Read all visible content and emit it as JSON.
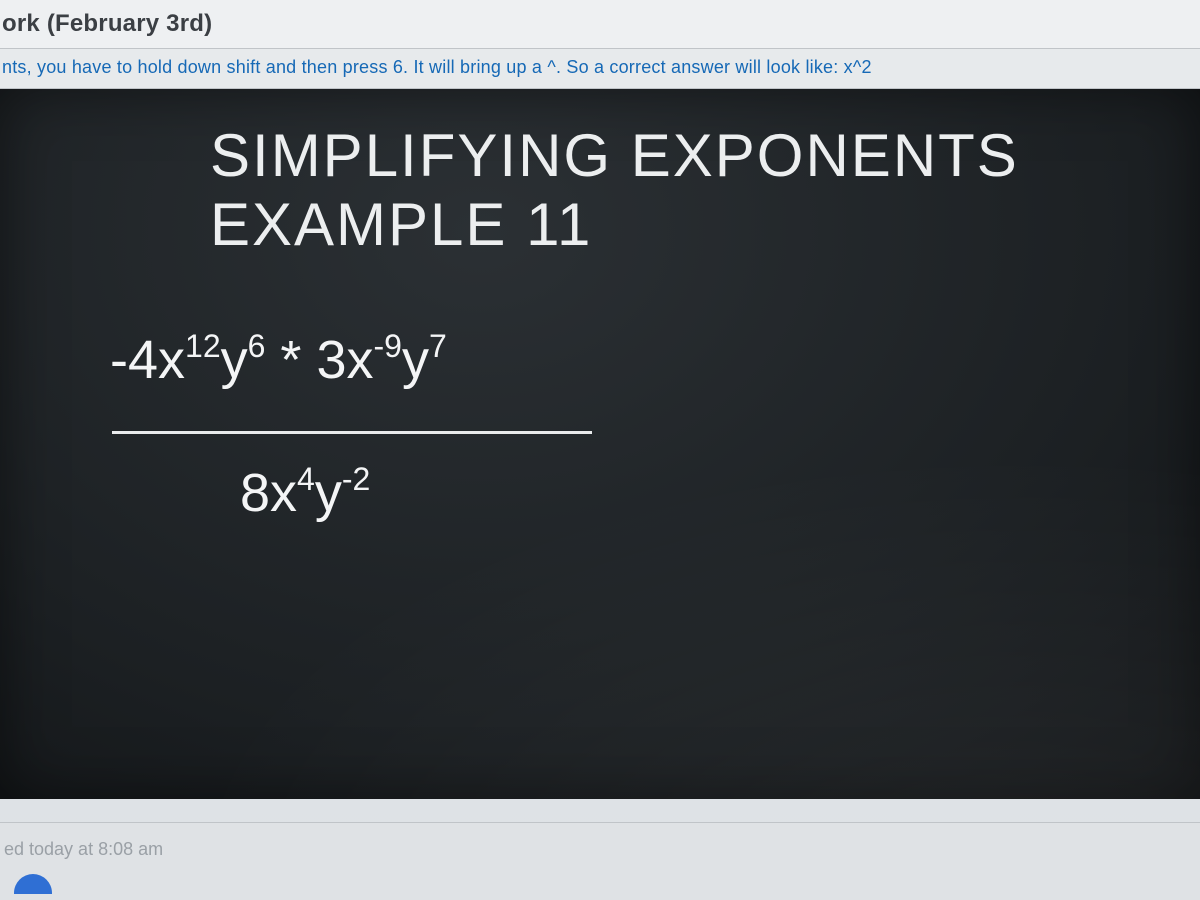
{
  "header": {
    "assignment_title_fragment": "ork (February 3rd)"
  },
  "instruction": {
    "text_fragment": "nts, you have to hold down shift and then press 6. It will bring up a ^. So a correct answer will look like: x^2"
  },
  "slide": {
    "title_text": "Simplifying Exponents Example ",
    "title_number": "11",
    "background_color": "#1c2023",
    "text_color": "#f3f4f5",
    "expression": {
      "numerator_plain": "-4x^12 y^6 * 3x^-9 y^7",
      "denominator_plain": "8x^4 y^-2",
      "num_coef1": "-4x",
      "num_exp1": "12",
      "num_var2": "y",
      "num_exp2": "6",
      "star": " * ",
      "num_coef3": "3x",
      "num_exp3": "-9",
      "num_var4": "y",
      "num_exp4": "7",
      "den_coef": "8x",
      "den_exp1": "4",
      "den_var2": "y",
      "den_exp2": "-2"
    }
  },
  "footer": {
    "timestamp_fragment": "ed today at 8:08 am"
  },
  "colors": {
    "page_bg": "#e4e7ea",
    "link_blue": "#1669b6",
    "header_text": "#3b3f44",
    "muted": "#9aa0a6"
  }
}
